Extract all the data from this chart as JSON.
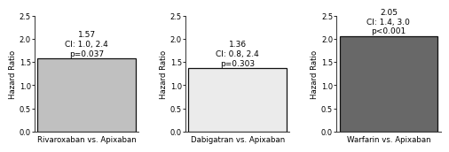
{
  "panels": [
    {
      "label": "Rivaroxaban vs. Apixaban",
      "value": 1.57,
      "annotation_lines": [
        "1.57",
        "CI: 1.0, 2.4",
        "p=0.037"
      ],
      "bar_color": "#c0c0c0",
      "bar_edge_color": "#111111"
    },
    {
      "label": "Dabigatran vs. Apixaban",
      "value": 1.36,
      "annotation_lines": [
        "1.36",
        "CI: 0.8, 2.4",
        "p=0.303"
      ],
      "bar_color": "#ebebeb",
      "bar_edge_color": "#111111"
    },
    {
      "label": "Warfarin vs. Apixaban",
      "value": 2.05,
      "annotation_lines": [
        "2.05",
        "CI: 1.4, 3.0",
        "p<0.001"
      ],
      "bar_color": "#686868",
      "bar_edge_color": "#111111"
    }
  ],
  "ylabel": "Hazard Ratio",
  "ylim": [
    0,
    2.5
  ],
  "yticks": [
    0.0,
    0.5,
    1.0,
    1.5,
    2.0,
    2.5
  ],
  "annotation_fontsize": 6.5,
  "xlabel_fontsize": 6.2,
  "ylabel_fontsize": 6.2,
  "tick_fontsize": 6.0,
  "background_color": "#ffffff"
}
